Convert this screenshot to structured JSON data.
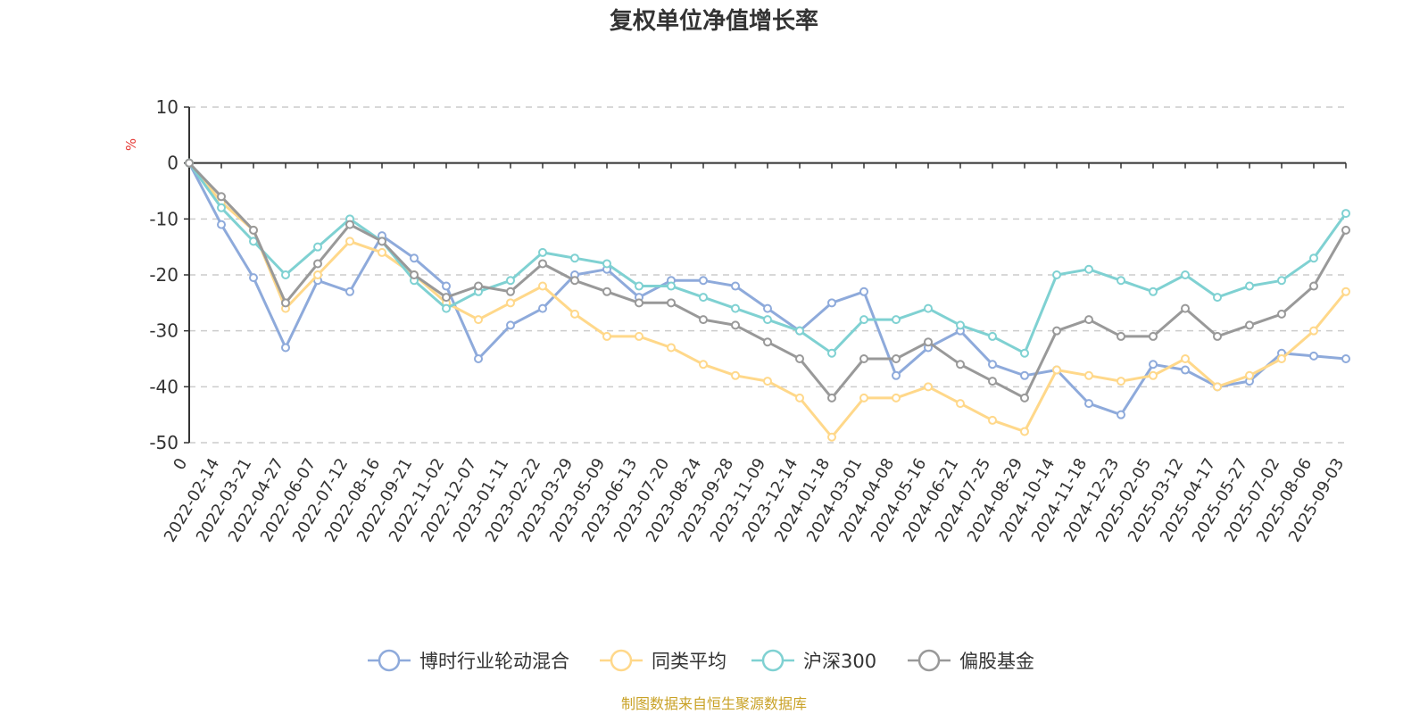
{
  "chart_data": {
    "type": "line",
    "title": "复权单位净值增长率",
    "y_unit": "%",
    "ylim": [
      -50,
      10
    ],
    "y_ticks": [
      10,
      0,
      -10,
      -20,
      -30,
      -40,
      -50
    ],
    "x_labels": [
      "0",
      "2022-02-14",
      "2022-03-21",
      "2022-04-27",
      "2022-06-07",
      "2022-07-12",
      "2022-08-16",
      "2022-09-21",
      "2022-11-02",
      "2022-12-07",
      "2023-01-11",
      "2023-02-22",
      "2023-03-29",
      "2023-05-09",
      "2023-06-13",
      "2023-07-20",
      "2023-08-24",
      "2023-09-28",
      "2023-11-09",
      "2023-12-14",
      "2024-01-18",
      "2024-03-01",
      "2024-04-08",
      "2024-05-16",
      "2024-06-21",
      "2024-07-25",
      "2024-08-29",
      "2024-10-14",
      "2024-11-18",
      "2024-12-23",
      "2025-02-05",
      "2025-03-12",
      "2025-04-17",
      "2025-05-27",
      "2025-07-02",
      "2025-08-06",
      "2025-09-03"
    ],
    "grid": "horizontal-dashed",
    "legend_position": "bottom",
    "series": [
      {
        "name": "博时行业轮动混合",
        "color": "#8eaadb",
        "values": [
          0,
          -11,
          -20.5,
          -33,
          -21,
          -23,
          -13,
          -17,
          -22,
          -35,
          -29,
          -26,
          -20,
          -19,
          -24,
          -21,
          -21,
          -22,
          -26,
          -30,
          -25,
          -23,
          -38,
          -33,
          -30,
          -36,
          -38,
          -37,
          -43,
          -45,
          -36,
          -37,
          -40,
          -39,
          -34,
          -34.5,
          -35
        ]
      },
      {
        "name": "同类平均",
        "color": "#ffd88a",
        "values": [
          0,
          -7,
          -12,
          -26,
          -20,
          -14,
          -16,
          -20,
          -25,
          -28,
          -25,
          -22,
          -27,
          -31,
          -31,
          -33,
          -36,
          -38,
          -39,
          -42,
          -49,
          -42,
          -42,
          -40,
          -43,
          -46,
          -48,
          -37,
          -38,
          -39,
          -38,
          -35,
          -40,
          -38,
          -35,
          -30,
          -23
        ]
      },
      {
        "name": "沪深300",
        "color": "#7fd1d2",
        "values": [
          0,
          -8,
          -14,
          -20,
          -15,
          -10,
          -14,
          -21,
          -26,
          -23,
          -21,
          -16,
          -17,
          -18,
          -22,
          -22,
          -24,
          -26,
          -28,
          -30,
          -34,
          -28,
          -28,
          -26,
          -29,
          -31,
          -34,
          -20,
          -19,
          -21,
          -23,
          -20,
          -24,
          -22,
          -21,
          -17,
          -9
        ]
      },
      {
        "name": "偏股基金",
        "color": "#999999",
        "values": [
          0,
          -6,
          -12,
          -25,
          -18,
          -11,
          -14,
          -20,
          -24,
          -22,
          -23,
          -18,
          -21,
          -23,
          -25,
          -25,
          -28,
          -29,
          -32,
          -35,
          -42,
          -35,
          -35,
          -32,
          -36,
          -39,
          -42,
          -30,
          -28,
          -31,
          -31,
          -26,
          -31,
          -29,
          -27,
          -22,
          -12
        ]
      }
    ],
    "source_note": "制图数据来自恒生聚源数据库"
  }
}
